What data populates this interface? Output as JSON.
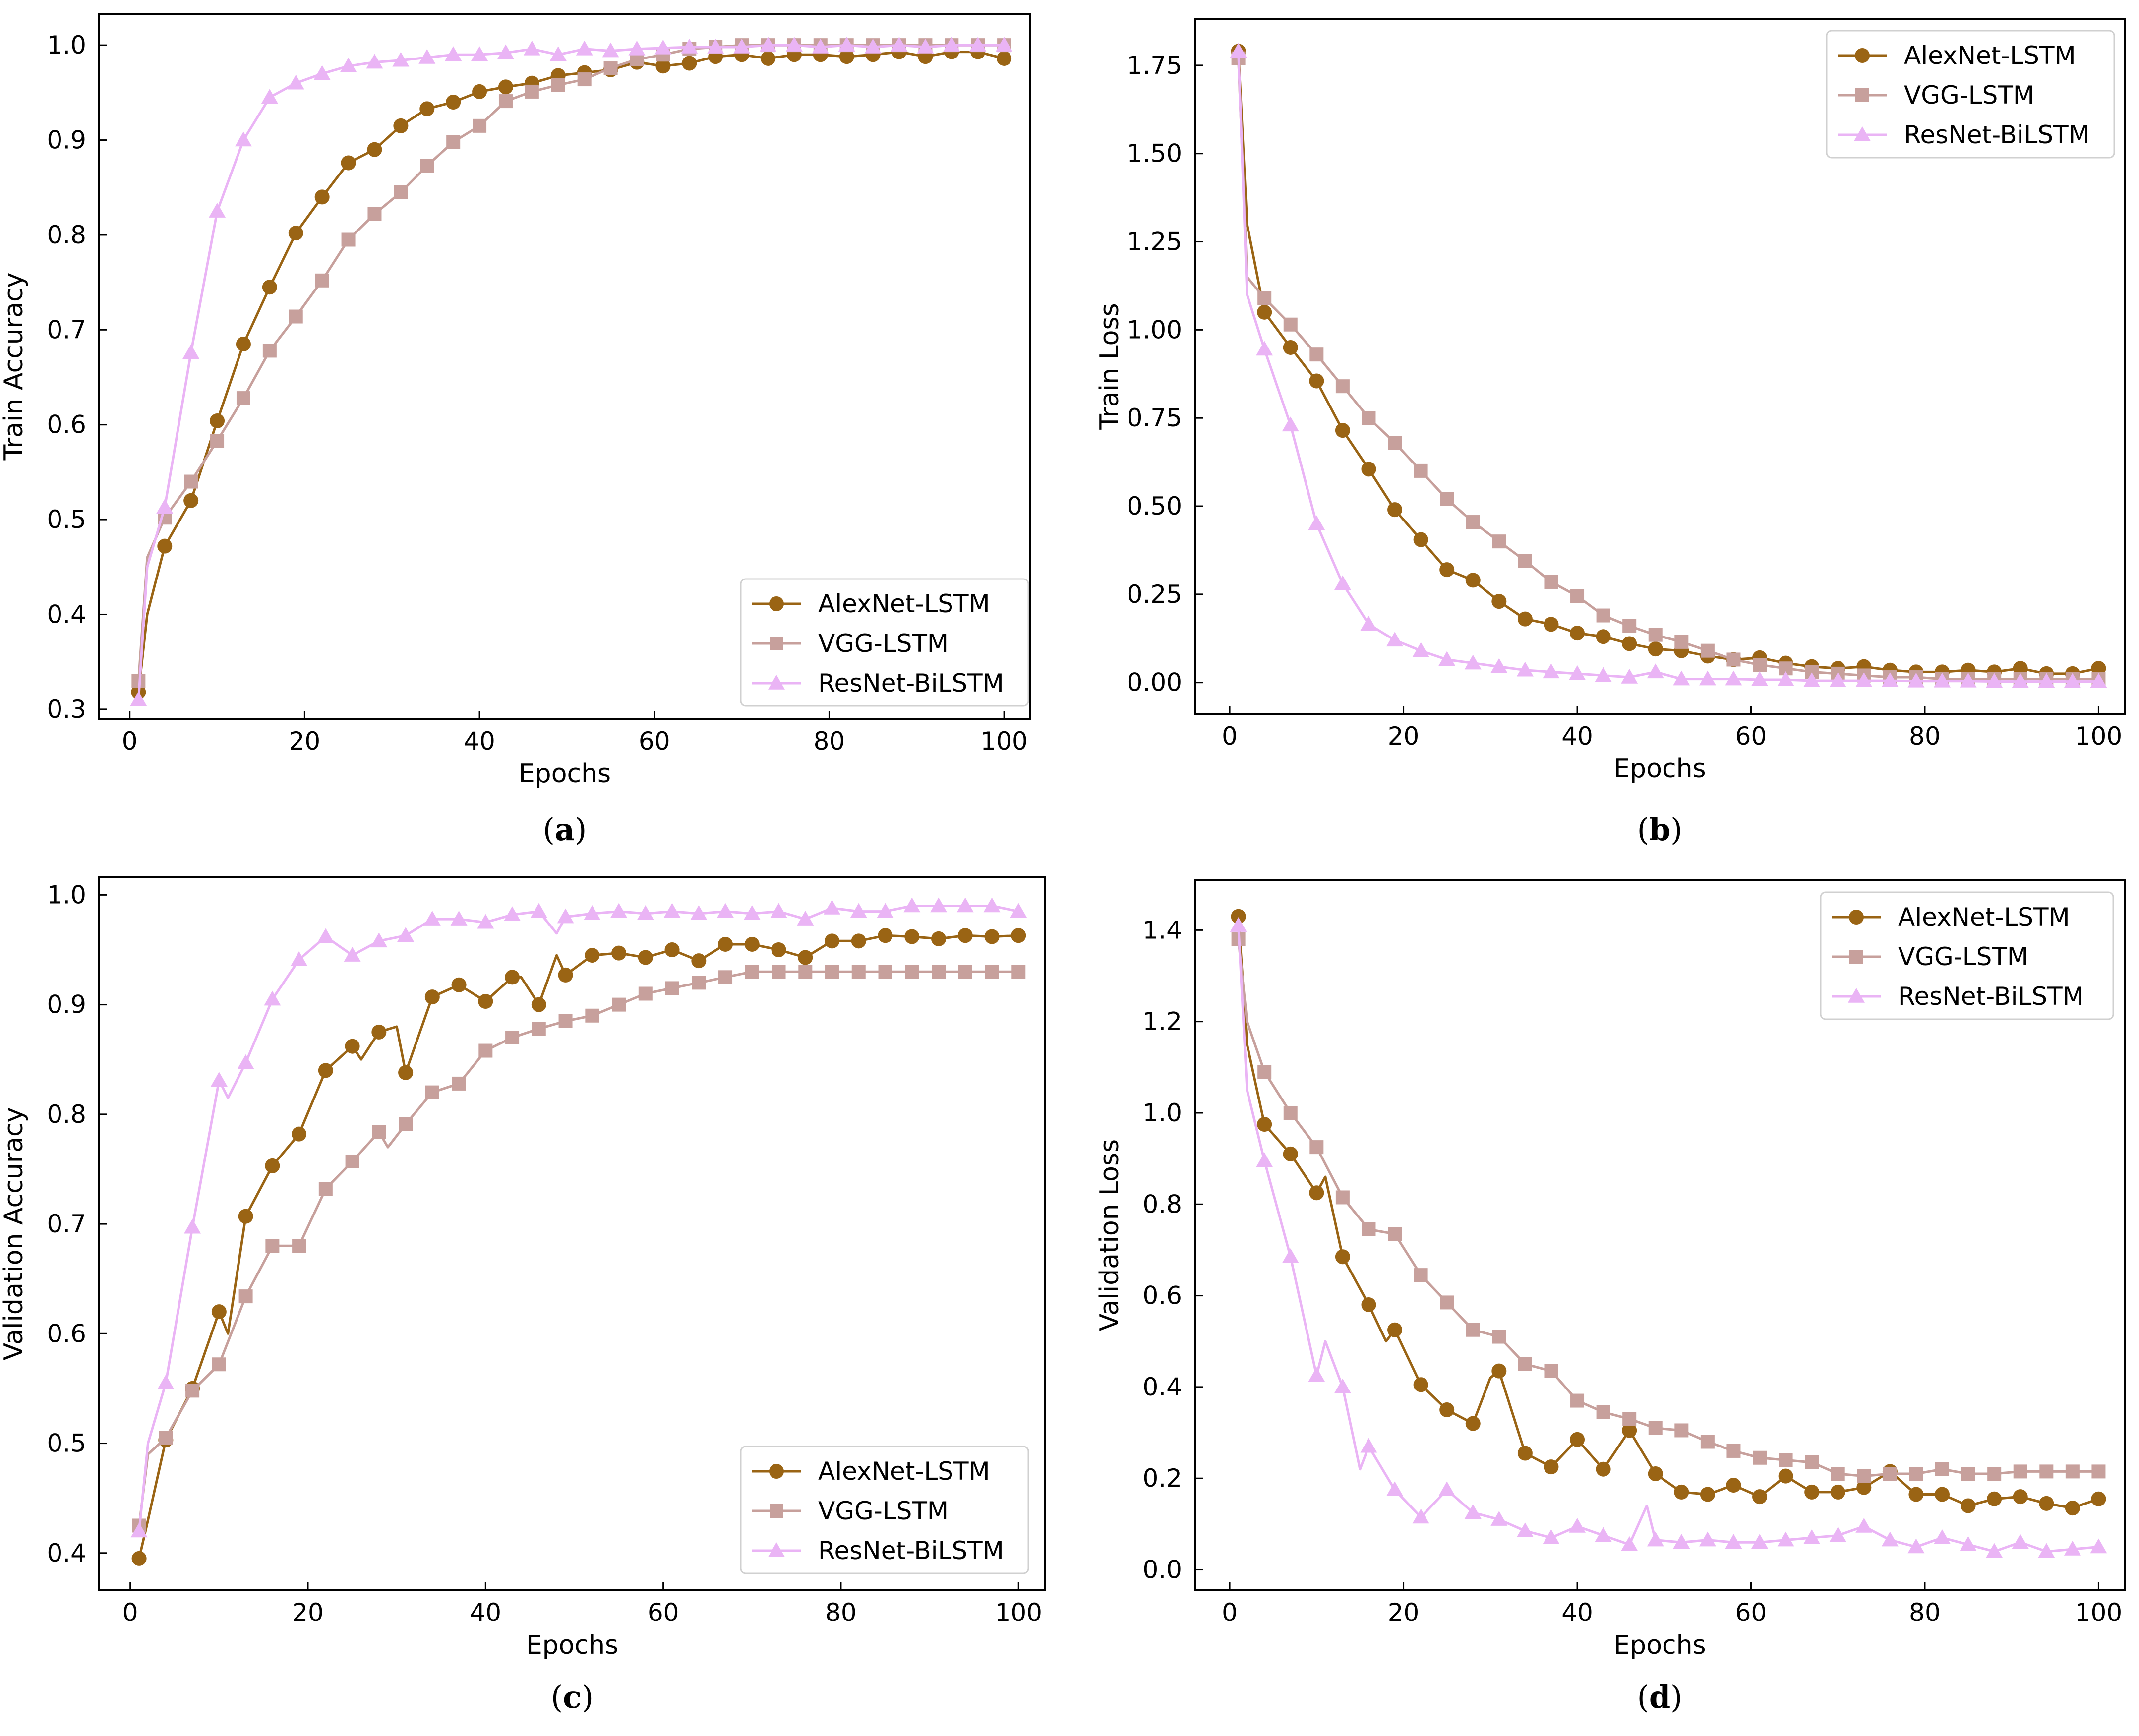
{
  "colors": {
    "alexnet": "#9a6414",
    "vgg": "#c7a09c",
    "resnet": "#eab4f5"
  },
  "chart_data": [
    {
      "id": "a",
      "type": "line",
      "caption_letter": "a",
      "xlabel": "Epochs",
      "ylabel": "Train Accuracy",
      "xlim": [
        -3.5,
        103
      ],
      "ylim": [
        0.29,
        1.033
      ],
      "xticks": [
        0,
        20,
        40,
        60,
        80,
        100
      ],
      "yticks": [
        0.3,
        0.4,
        0.5,
        0.6,
        0.7,
        0.8,
        0.9,
        1.0
      ],
      "ytick_labels": [
        "0.3",
        "0.4",
        "0.5",
        "0.6",
        "0.7",
        "0.8",
        "0.9",
        "1.0"
      ],
      "legend_position": "lower-right",
      "series": [
        {
          "name": "AlexNet-LSTM",
          "color_key": "alexnet",
          "marker": "circle",
          "x": [
            1,
            2,
            4,
            7,
            10,
            13,
            16,
            19,
            22,
            25,
            28,
            31,
            34,
            37,
            40,
            43,
            46,
            49,
            52,
            55,
            58,
            61,
            64,
            67,
            70,
            73,
            76,
            79,
            82,
            85,
            88,
            91,
            94,
            97,
            100
          ],
          "y": [
            0.318,
            0.4,
            0.472,
            0.52,
            0.604,
            0.685,
            0.745,
            0.802,
            0.84,
            0.876,
            0.89,
            0.915,
            0.933,
            0.94,
            0.951,
            0.956,
            0.96,
            0.968,
            0.971,
            0.974,
            0.982,
            0.978,
            0.981,
            0.988,
            0.99,
            0.986,
            0.99,
            0.99,
            0.988,
            0.99,
            0.993,
            0.988,
            0.993,
            0.993,
            0.986
          ]
        },
        {
          "name": "VGG-LSTM",
          "color_key": "vgg",
          "marker": "square",
          "x": [
            1,
            2,
            4,
            7,
            10,
            13,
            16,
            19,
            22,
            25,
            28,
            31,
            34,
            37,
            40,
            43,
            46,
            49,
            52,
            55,
            58,
            61,
            64,
            67,
            70,
            73,
            76,
            79,
            82,
            85,
            88,
            91,
            94,
            97,
            100
          ],
          "y": [
            0.33,
            0.46,
            0.502,
            0.54,
            0.583,
            0.628,
            0.678,
            0.714,
            0.752,
            0.795,
            0.822,
            0.845,
            0.873,
            0.898,
            0.915,
            0.941,
            0.951,
            0.958,
            0.964,
            0.976,
            0.985,
            0.99,
            0.996,
            0.998,
            1.0,
            1.0,
            1.0,
            1.0,
            1.0,
            1.0,
            1.0,
            1.0,
            1.0,
            1.0,
            1.0
          ]
        },
        {
          "name": "ResNet-BiLSTM",
          "color_key": "resnet",
          "marker": "triangle",
          "x": [
            1,
            2,
            4,
            7,
            10,
            13,
            16,
            19,
            22,
            25,
            28,
            31,
            34,
            37,
            40,
            43,
            46,
            49,
            52,
            55,
            58,
            61,
            64,
            67,
            70,
            73,
            76,
            79,
            82,
            85,
            88,
            91,
            94,
            97,
            100
          ],
          "y": [
            0.31,
            0.45,
            0.513,
            0.676,
            0.825,
            0.9,
            0.945,
            0.96,
            0.97,
            0.978,
            0.982,
            0.984,
            0.987,
            0.99,
            0.99,
            0.992,
            0.996,
            0.99,
            0.996,
            0.994,
            0.996,
            0.997,
            0.998,
            0.998,
            0.998,
            1.0,
            1.0,
            0.998,
            1.0,
            0.998,
            1.0,
            0.998,
            1.0,
            1.0,
            1.0
          ]
        }
      ]
    },
    {
      "id": "b",
      "type": "line",
      "caption_letter": "b",
      "xlabel": "Epochs",
      "ylabel": "Train Loss",
      "xlim": [
        -4,
        103
      ],
      "ylim": [
        -0.089,
        1.882
      ],
      "xticks": [
        0,
        20,
        40,
        60,
        80,
        100
      ],
      "yticks": [
        0.0,
        0.25,
        0.5,
        0.75,
        1.0,
        1.25,
        1.5,
        1.75
      ],
      "ytick_labels": [
        "0.00",
        "0.25",
        "0.50",
        "0.75",
        "1.00",
        "1.25",
        "1.50",
        "1.75"
      ],
      "legend_position": "top-right",
      "series": [
        {
          "name": "AlexNet-LSTM",
          "color_key": "alexnet",
          "marker": "circle",
          "x": [
            1,
            2,
            4,
            7,
            10,
            13,
            16,
            19,
            22,
            25,
            28,
            31,
            34,
            37,
            40,
            43,
            46,
            49,
            52,
            55,
            58,
            61,
            64,
            67,
            70,
            73,
            76,
            79,
            82,
            85,
            88,
            91,
            94,
            97,
            100
          ],
          "y": [
            1.79,
            1.3,
            1.05,
            0.95,
            0.855,
            0.715,
            0.605,
            0.49,
            0.405,
            0.32,
            0.29,
            0.23,
            0.18,
            0.165,
            0.14,
            0.13,
            0.11,
            0.095,
            0.09,
            0.075,
            0.065,
            0.07,
            0.055,
            0.045,
            0.04,
            0.045,
            0.035,
            0.03,
            0.03,
            0.035,
            0.03,
            0.04,
            0.025,
            0.025,
            0.04
          ]
        },
        {
          "name": "VGG-LSTM",
          "color_key": "vgg",
          "marker": "square",
          "x": [
            1,
            2,
            4,
            7,
            10,
            13,
            16,
            19,
            22,
            25,
            28,
            31,
            34,
            37,
            40,
            43,
            46,
            49,
            52,
            55,
            58,
            61,
            64,
            67,
            70,
            73,
            76,
            79,
            82,
            85,
            88,
            91,
            94,
            97,
            100
          ],
          "y": [
            1.77,
            1.15,
            1.09,
            1.015,
            0.93,
            0.84,
            0.75,
            0.68,
            0.6,
            0.52,
            0.455,
            0.4,
            0.345,
            0.285,
            0.245,
            0.19,
            0.16,
            0.135,
            0.115,
            0.09,
            0.065,
            0.05,
            0.04,
            0.03,
            0.025,
            0.02,
            0.015,
            0.015,
            0.01,
            0.01,
            0.01,
            0.01,
            0.01,
            0.01,
            0.01
          ]
        },
        {
          "name": "ResNet-BiLSTM",
          "color_key": "resnet",
          "marker": "triangle",
          "x": [
            1,
            2,
            4,
            7,
            10,
            13,
            16,
            19,
            22,
            25,
            28,
            31,
            34,
            37,
            40,
            43,
            46,
            49,
            52,
            55,
            58,
            61,
            64,
            67,
            70,
            73,
            76,
            79,
            82,
            85,
            88,
            91,
            94,
            97,
            100
          ],
          "y": [
            1.79,
            1.1,
            0.945,
            0.73,
            0.45,
            0.28,
            0.165,
            0.12,
            0.09,
            0.065,
            0.055,
            0.045,
            0.035,
            0.03,
            0.025,
            0.02,
            0.015,
            0.03,
            0.01,
            0.01,
            0.01,
            0.008,
            0.008,
            0.005,
            0.005,
            0.005,
            0.005,
            0.004,
            0.004,
            0.004,
            0.003,
            0.003,
            0.003,
            0.003,
            0.003
          ]
        }
      ]
    },
    {
      "id": "c",
      "type": "line",
      "caption_letter": "c",
      "xlabel": "Epochs",
      "ylabel": "Validation Accuracy",
      "xlim": [
        -3.5,
        103
      ],
      "ylim": [
        0.366,
        1.016
      ],
      "xticks": [
        0,
        20,
        40,
        60,
        80,
        100
      ],
      "yticks": [
        0.4,
        0.5,
        0.6,
        0.7,
        0.8,
        0.9,
        1.0
      ],
      "ytick_labels": [
        "0.4",
        "0.5",
        "0.6",
        "0.7",
        "0.8",
        "0.9",
        "1.0"
      ],
      "legend_position": "lower-right",
      "series": [
        {
          "name": "AlexNet-LSTM",
          "color_key": "alexnet",
          "marker": "circle",
          "x": [
            1,
            2,
            4,
            7,
            10,
            11,
            13,
            16,
            19,
            22,
            25,
            26,
            28,
            30,
            31,
            34,
            37,
            40,
            43,
            44,
            46,
            48,
            49,
            52,
            55,
            58,
            61,
            64,
            67,
            70,
            73,
            76,
            79,
            82,
            85,
            88,
            91,
            94,
            97,
            100
          ],
          "y": [
            0.395,
            0.43,
            0.503,
            0.55,
            0.62,
            0.6,
            0.707,
            0.753,
            0.782,
            0.84,
            0.862,
            0.85,
            0.875,
            0.88,
            0.838,
            0.907,
            0.918,
            0.903,
            0.925,
            0.925,
            0.9,
            0.945,
            0.927,
            0.945,
            0.947,
            0.943,
            0.95,
            0.94,
            0.955,
            0.955,
            0.95,
            0.943,
            0.958,
            0.958,
            0.963,
            0.962,
            0.96,
            0.963,
            0.962,
            0.963
          ]
        },
        {
          "name": "VGG-LSTM",
          "color_key": "vgg",
          "marker": "square",
          "x": [
            1,
            2,
            4,
            7,
            10,
            13,
            16,
            19,
            22,
            25,
            28,
            29,
            31,
            34,
            37,
            40,
            43,
            46,
            49,
            52,
            55,
            58,
            61,
            64,
            67,
            70,
            73,
            76,
            79,
            82,
            85,
            88,
            91,
            94,
            97,
            100
          ],
          "y": [
            0.425,
            0.49,
            0.505,
            0.548,
            0.572,
            0.634,
            0.68,
            0.68,
            0.732,
            0.757,
            0.784,
            0.77,
            0.791,
            0.82,
            0.828,
            0.858,
            0.87,
            0.878,
            0.885,
            0.89,
            0.9,
            0.91,
            0.915,
            0.92,
            0.925,
            0.93,
            0.93,
            0.93,
            0.93,
            0.93,
            0.93,
            0.93,
            0.93,
            0.93,
            0.93,
            0.93
          ]
        },
        {
          "name": "ResNet-BiLSTM",
          "color_key": "resnet",
          "marker": "triangle",
          "x": [
            1,
            2,
            4,
            7,
            10,
            11,
            13,
            16,
            19,
            22,
            25,
            28,
            31,
            34,
            37,
            40,
            43,
            46,
            48,
            49,
            52,
            55,
            58,
            61,
            64,
            67,
            70,
            73,
            76,
            79,
            82,
            85,
            88,
            91,
            94,
            97,
            100
          ],
          "y": [
            0.42,
            0.5,
            0.555,
            0.697,
            0.831,
            0.815,
            0.847,
            0.905,
            0.941,
            0.962,
            0.945,
            0.958,
            0.963,
            0.978,
            0.978,
            0.975,
            0.982,
            0.985,
            0.965,
            0.98,
            0.983,
            0.985,
            0.983,
            0.985,
            0.983,
            0.985,
            0.983,
            0.985,
            0.978,
            0.988,
            0.985,
            0.985,
            0.99,
            0.99,
            0.99,
            0.99,
            0.985
          ]
        }
      ]
    },
    {
      "id": "d",
      "type": "line",
      "caption_letter": "d",
      "xlabel": "Epochs",
      "ylabel": "Validation Loss",
      "xlim": [
        -4,
        103
      ],
      "ylim": [
        -0.045,
        1.51
      ],
      "xticks": [
        0,
        20,
        40,
        60,
        80,
        100
      ],
      "yticks": [
        0.0,
        0.2,
        0.4,
        0.6,
        0.8,
        1.0,
        1.2,
        1.4
      ],
      "ytick_labels": [
        "0.0",
        "0.2",
        "0.4",
        "0.6",
        "0.8",
        "1.0",
        "1.2",
        "1.4"
      ],
      "legend_position": "top-right",
      "series": [
        {
          "name": "AlexNet-LSTM",
          "color_key": "alexnet",
          "marker": "circle",
          "x": [
            1,
            2,
            4,
            7,
            10,
            11,
            13,
            16,
            18,
            19,
            22,
            25,
            28,
            30,
            31,
            34,
            37,
            40,
            43,
            46,
            49,
            52,
            55,
            58,
            61,
            64,
            67,
            70,
            73,
            76,
            79,
            82,
            85,
            88,
            91,
            94,
            97,
            100
          ],
          "y": [
            1.43,
            1.15,
            0.975,
            0.91,
            0.825,
            0.86,
            0.685,
            0.58,
            0.5,
            0.525,
            0.405,
            0.35,
            0.32,
            0.42,
            0.435,
            0.255,
            0.225,
            0.285,
            0.22,
            0.305,
            0.21,
            0.17,
            0.165,
            0.185,
            0.16,
            0.205,
            0.17,
            0.17,
            0.18,
            0.215,
            0.165,
            0.165,
            0.14,
            0.155,
            0.16,
            0.145,
            0.135,
            0.155
          ]
        },
        {
          "name": "VGG-LSTM",
          "color_key": "vgg",
          "marker": "square",
          "x": [
            1,
            2,
            4,
            7,
            10,
            13,
            16,
            19,
            22,
            25,
            28,
            31,
            34,
            37,
            40,
            43,
            46,
            49,
            52,
            55,
            58,
            61,
            64,
            67,
            70,
            73,
            76,
            79,
            82,
            85,
            88,
            91,
            94,
            97,
            100
          ],
          "y": [
            1.38,
            1.2,
            1.09,
            1.0,
            0.925,
            0.815,
            0.745,
            0.735,
            0.645,
            0.585,
            0.525,
            0.51,
            0.45,
            0.435,
            0.37,
            0.345,
            0.33,
            0.31,
            0.305,
            0.28,
            0.26,
            0.245,
            0.24,
            0.235,
            0.21,
            0.205,
            0.21,
            0.21,
            0.22,
            0.21,
            0.21,
            0.215,
            0.215,
            0.215,
            0.215
          ]
        },
        {
          "name": "ResNet-BiLSTM",
          "color_key": "resnet",
          "marker": "triangle",
          "x": [
            1,
            2,
            4,
            7,
            10,
            11,
            13,
            15,
            16,
            19,
            22,
            25,
            28,
            31,
            34,
            37,
            40,
            43,
            46,
            48,
            49,
            52,
            55,
            58,
            61,
            64,
            67,
            70,
            73,
            76,
            79,
            82,
            85,
            88,
            91,
            94,
            97,
            100
          ],
          "y": [
            1.41,
            1.05,
            0.895,
            0.685,
            0.425,
            0.5,
            0.4,
            0.22,
            0.27,
            0.175,
            0.115,
            0.175,
            0.125,
            0.11,
            0.085,
            0.07,
            0.095,
            0.075,
            0.055,
            0.14,
            0.065,
            0.06,
            0.065,
            0.06,
            0.06,
            0.065,
            0.07,
            0.075,
            0.095,
            0.065,
            0.05,
            0.07,
            0.055,
            0.04,
            0.06,
            0.04,
            0.045,
            0.05
          ]
        }
      ]
    }
  ]
}
